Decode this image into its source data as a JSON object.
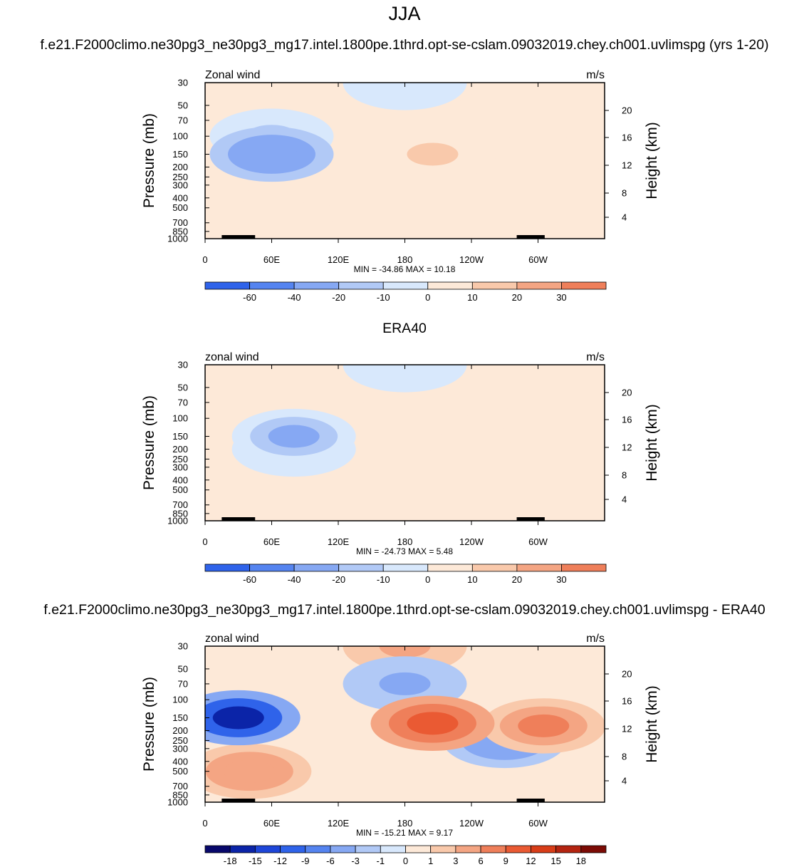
{
  "title": "JJA",
  "subtitle_model": "f.e21.F2000climo.ne30pg3_ne30pg3_mg17.intel.1800pe.1thrd.opt-se-cslam.09032019.chey.ch001.uvlimspg (yrs 1-20)",
  "subtitle_obs": "ERA40",
  "subtitle_diff": "f.e21.F2000climo.ne30pg3_ne30pg3_mg17.intel.1800pe.1thrd.opt-se-cslam.09032019.chey.ch001.uvlimspg - ERA40",
  "chart_data": [
    {
      "type": "heatmap",
      "variable": "Zonal wind",
      "units": "m/s",
      "ylabel": "Pressure (mb)",
      "ylabel_right": "Height (km)",
      "pressure_ticks": [
        "30",
        "50",
        "70",
        "100",
        "150",
        "200",
        "250",
        "300",
        "400",
        "500",
        "700",
        "850",
        "1000"
      ],
      "height_ticks": [
        "20",
        "16",
        "12",
        "8",
        "4"
      ],
      "lon_ticks": [
        "0",
        "60E",
        "120E",
        "180",
        "120W",
        "60W"
      ],
      "min_label": "MIN = -34.86",
      "max_label": "MAX =  10.18",
      "min": -34.86,
      "max": 10.18,
      "levels": [
        "-60",
        "-40",
        "-20",
        "-10",
        "0",
        "10",
        "20",
        "30"
      ],
      "colors": [
        "#08086b",
        "#0b24a8",
        "#1e46d9",
        "#2f63ea",
        "#5584f0",
        "#86a8f3",
        "#b1c9f6",
        "#d8e8fc",
        "#fde9d8",
        "#f9c9ab",
        "#f4a583",
        "#ef7f5a",
        "#ea5a33",
        "#d83d18",
        "#b42410",
        "#7c0b05"
      ],
      "features": [
        {
          "lon": 60,
          "p": 150,
          "value": -34.86
        },
        {
          "lon": 60,
          "p": 100,
          "value": -15
        },
        {
          "lon": 60,
          "p": 600,
          "value": 5
        },
        {
          "lon": 205,
          "p": 150,
          "value": 10.18
        },
        {
          "lon": 300,
          "p": 180,
          "value": 7
        },
        {
          "lon": 180,
          "p": 30,
          "value": -3
        },
        {
          "lon": 200,
          "p": 60,
          "value": 2
        }
      ]
    },
    {
      "type": "heatmap",
      "variable": "zonal wind",
      "units": "m/s",
      "ylabel": "Pressure (mb)",
      "ylabel_right": "Height (km)",
      "pressure_ticks": [
        "30",
        "50",
        "70",
        "100",
        "150",
        "200",
        "250",
        "300",
        "400",
        "500",
        "700",
        "850",
        "1000"
      ],
      "height_ticks": [
        "20",
        "16",
        "12",
        "8",
        "4"
      ],
      "lon_ticks": [
        "0",
        "60E",
        "120E",
        "180",
        "120W",
        "60W"
      ],
      "min_label": "MIN = -24.73",
      "max_label": "MAX =   5.48",
      "min": -24.73,
      "max": 5.48,
      "levels": [
        "-60",
        "-40",
        "-20",
        "-10",
        "0",
        "10",
        "20",
        "30"
      ],
      "colors": [
        "#08086b",
        "#0b24a8",
        "#1e46d9",
        "#2f63ea",
        "#5584f0",
        "#86a8f3",
        "#b1c9f6",
        "#d8e8fc",
        "#fde9d8",
        "#f9c9ab",
        "#f4a583",
        "#ef7f5a",
        "#ea5a33",
        "#d83d18",
        "#b42410",
        "#7c0b05"
      ],
      "features": [
        {
          "lon": 80,
          "p": 150,
          "value": -24.73
        },
        {
          "lon": 80,
          "p": 200,
          "value": -12
        },
        {
          "lon": 80,
          "p": 700,
          "value": 5.48
        },
        {
          "lon": 230,
          "p": 120,
          "value": 3
        },
        {
          "lon": 180,
          "p": 30,
          "value": -3
        },
        {
          "lon": 180,
          "p": 60,
          "value": 1
        }
      ]
    },
    {
      "type": "heatmap",
      "variable": "zonal wind",
      "units": "m/s",
      "ylabel": "Pressure (mb)",
      "ylabel_right": "Height (km)",
      "pressure_ticks": [
        "30",
        "50",
        "70",
        "100",
        "150",
        "200",
        "250",
        "300",
        "400",
        "500",
        "700",
        "850",
        "1000"
      ],
      "height_ticks": [
        "20",
        "16",
        "12",
        "8",
        "4"
      ],
      "lon_ticks": [
        "0",
        "60E",
        "120E",
        "180",
        "120W",
        "60W"
      ],
      "min_label": "MIN = -15.21",
      "max_label": "MAX =   9.17",
      "min": -15.21,
      "max": 9.17,
      "levels": [
        "-18",
        "-15",
        "-12",
        "-9",
        "-6",
        "-3",
        "-1",
        "0",
        "1",
        "3",
        "6",
        "9",
        "12",
        "15",
        "18"
      ],
      "colors": [
        "#08086b",
        "#0b24a8",
        "#1e46d9",
        "#2f63ea",
        "#5584f0",
        "#86a8f3",
        "#b1c9f6",
        "#d8e8fc",
        "#fde9d8",
        "#f9c9ab",
        "#f4a583",
        "#ef7f5a",
        "#ea5a33",
        "#d83d18",
        "#b42410",
        "#7c0b05"
      ],
      "features": [
        {
          "lon": 30,
          "p": 150,
          "value": -15.21
        },
        {
          "lon": 205,
          "p": 170,
          "value": 9.17
        },
        {
          "lon": 40,
          "p": 500,
          "value": 5
        },
        {
          "lon": 305,
          "p": 180,
          "value": 7
        },
        {
          "lon": 270,
          "p": 250,
          "value": -6
        },
        {
          "lon": 180,
          "p": 30,
          "value": 4
        },
        {
          "lon": 180,
          "p": 70,
          "value": -4
        }
      ]
    }
  ]
}
